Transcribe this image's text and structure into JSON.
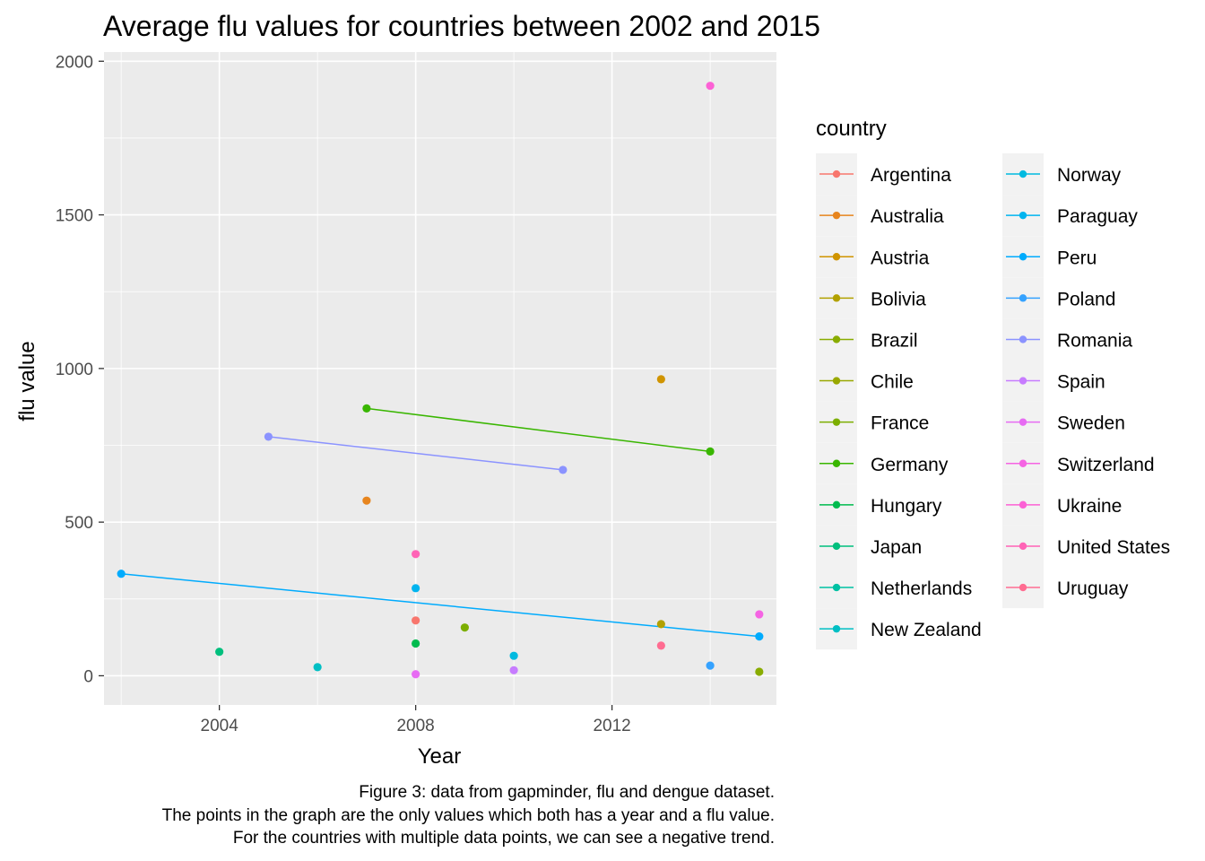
{
  "chart_data": {
    "type": "scatter",
    "title": "Average flu values for countries between 2002 and 2015",
    "xlabel": "Year",
    "ylabel": "flu value",
    "xlim": [
      2001.65,
      2015.35
    ],
    "ylim": [
      -95,
      2030
    ],
    "x_ticks": [
      2004,
      2008,
      2012
    ],
    "y_ticks": [
      0,
      500,
      1000,
      1500,
      2000
    ],
    "grid": true,
    "legend_title": "country",
    "legend_position": "right",
    "caption": [
      "Figure 3: data from gapminder, flu and dengue dataset.",
      "The points in the graph are the only values which both has a year and a flu value.",
      "For the countries with multiple data points, we can see a negative trend."
    ],
    "series": [
      {
        "name": "Argentina",
        "color": "#F8766D",
        "points": [
          [
            2008,
            180
          ]
        ]
      },
      {
        "name": "Australia",
        "color": "#E7851E",
        "points": [
          [
            2007,
            570
          ]
        ]
      },
      {
        "name": "Austria",
        "color": "#D09400",
        "points": [
          [
            2013,
            965
          ]
        ]
      },
      {
        "name": "Bolivia",
        "color": "#B2A100",
        "points": [
          [
            2013,
            168
          ]
        ]
      },
      {
        "name": "Brazil",
        "color": "#89AC00",
        "points": [
          [
            2015,
            13
          ]
        ]
      },
      {
        "name": "Chile",
        "color": "#99A800",
        "points": []
      },
      {
        "name": "France",
        "color": "#7CAE00",
        "points": [
          [
            2009,
            157
          ]
        ]
      },
      {
        "name": "Germany",
        "color": "#39B600",
        "points": [
          [
            2007,
            870
          ],
          [
            2014,
            730
          ]
        ]
      },
      {
        "name": "Hungary",
        "color": "#00BB4E",
        "points": [
          [
            2008,
            105
          ]
        ]
      },
      {
        "name": "Japan",
        "color": "#00BF7D",
        "points": [
          [
            2004,
            78
          ]
        ]
      },
      {
        "name": "Netherlands",
        "color": "#00C1A3",
        "points": []
      },
      {
        "name": "New Zealand",
        "color": "#00BFC4",
        "points": [
          [
            2006,
            28
          ]
        ]
      },
      {
        "name": "Norway",
        "color": "#00BAE0",
        "points": [
          [
            2010,
            65
          ]
        ]
      },
      {
        "name": "Paraguay",
        "color": "#00B4EF",
        "points": [
          [
            2008,
            285
          ]
        ]
      },
      {
        "name": "Peru",
        "color": "#00ABFD",
        "points": [
          [
            2002,
            332
          ],
          [
            2015,
            128
          ]
        ]
      },
      {
        "name": "Poland",
        "color": "#35A2FF",
        "points": [
          [
            2014,
            33
          ]
        ]
      },
      {
        "name": "Romania",
        "color": "#8B93FF",
        "points": [
          [
            2005,
            778
          ],
          [
            2011,
            670
          ]
        ]
      },
      {
        "name": "Spain",
        "color": "#C77CFF",
        "points": [
          [
            2010,
            18
          ]
        ]
      },
      {
        "name": "Sweden",
        "color": "#E76BF3",
        "points": [
          [
            2008,
            5
          ]
        ]
      },
      {
        "name": "Switzerland",
        "color": "#F564E3",
        "points": [
          [
            2015,
            200
          ]
        ]
      },
      {
        "name": "Ukraine",
        "color": "#FC61D5",
        "points": [
          [
            2014,
            1920
          ]
        ]
      },
      {
        "name": "United States",
        "color": "#FF63B6",
        "points": [
          [
            2008,
            396
          ]
        ]
      },
      {
        "name": "Uruguay",
        "color": "#FF6C91",
        "points": [
          [
            2013,
            98
          ]
        ]
      }
    ]
  }
}
